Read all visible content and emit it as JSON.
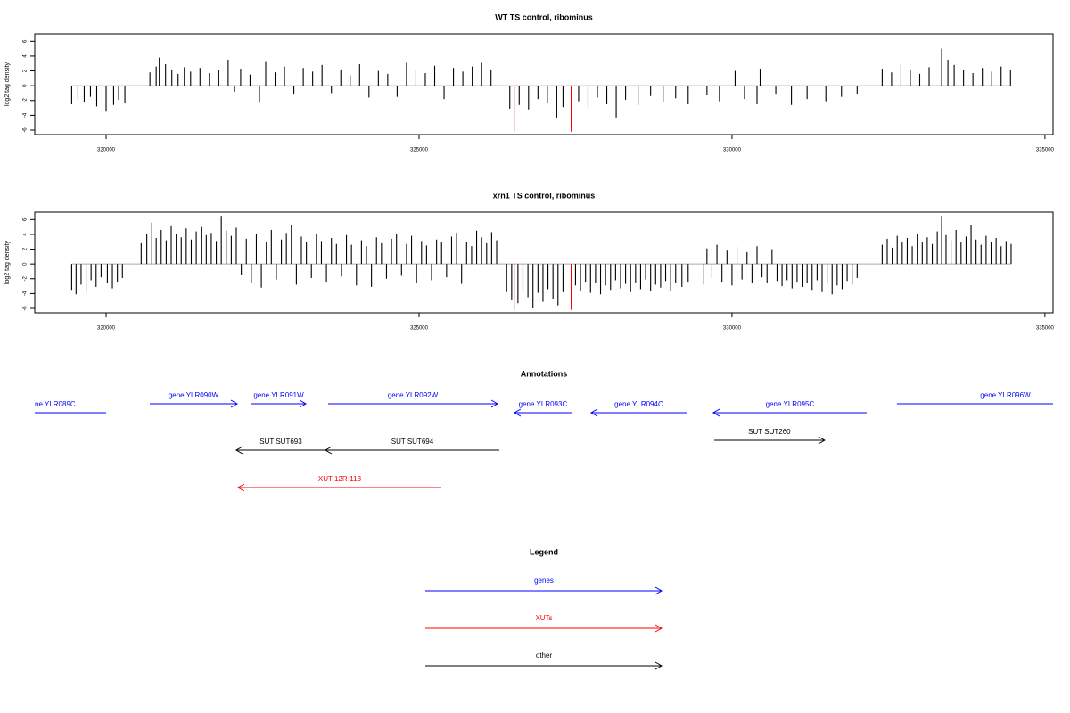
{
  "chart_data": [
    {
      "type": "bar",
      "title": "WT TS control, ribominus",
      "ylabel": "log2 tag density",
      "xlim": [
        318860,
        335130
      ],
      "ylim": [
        -6.6,
        7
      ],
      "xticks": [
        320000,
        325000,
        330000,
        335000
      ],
      "yticks": [
        -6,
        -4,
        -2,
        0,
        2,
        4,
        6
      ],
      "series": [
        {
          "color": "#000000",
          "x": [
            319450,
            319550,
            319650,
            319750,
            319850,
            320000,
            320120,
            320200,
            320300,
            320700,
            320800,
            320850,
            320950,
            321050,
            321150,
            321250,
            321350,
            321500,
            321650,
            321800,
            321950,
            322050,
            322150,
            322300,
            322450,
            322550,
            322700,
            322850,
            323000,
            323150,
            323300,
            323450,
            323600,
            323750,
            323900,
            324050,
            324200,
            324350,
            324500,
            324650,
            324800,
            324950,
            325100,
            325250,
            325400,
            325550,
            325700,
            325850,
            326000,
            326150,
            326450,
            326600,
            326750,
            326900,
            327050,
            327200,
            327300,
            327550,
            327700,
            327850,
            328000,
            328150,
            328300,
            328500,
            328700,
            328900,
            329100,
            329300,
            329600,
            329800,
            330050,
            330200,
            330400,
            330450,
            330700,
            330950,
            331200,
            331500,
            331750,
            332000,
            332400,
            332550,
            332700,
            332850,
            333000,
            333150,
            333350,
            333450,
            333550,
            333700,
            333850,
            334000,
            334150,
            334300,
            334450
          ],
          "values": [
            -2.5,
            -1.8,
            -2.2,
            -1.5,
            -2.8,
            -3.5,
            -2.6,
            -1.9,
            -2.4,
            1.8,
            2.6,
            3.8,
            2.9,
            2.2,
            1.6,
            2.5,
            1.9,
            2.4,
            1.7,
            2.1,
            3.5,
            -0.8,
            2.3,
            1.5,
            -2.3,
            3.2,
            1.8,
            2.6,
            -1.2,
            2.4,
            1.9,
            2.8,
            -1.0,
            2.2,
            1.4,
            2.9,
            -1.6,
            2.0,
            1.6,
            -1.5,
            3.1,
            2.1,
            1.7,
            2.7,
            -1.8,
            2.4,
            1.9,
            2.6,
            3.1,
            2.2,
            -3.1,
            -2.6,
            -3.2,
            -1.8,
            -2.4,
            -4.3,
            -2.9,
            -2.1,
            -2.9,
            -1.6,
            -2.5,
            -4.3,
            -1.9,
            -2.6,
            -1.4,
            -2.2,
            -1.7,
            -2.5,
            -1.3,
            -2.1,
            2.0,
            -1.8,
            -2.5,
            2.3,
            -1.2,
            -2.6,
            -1.8,
            -2.1,
            -1.5,
            -1.2,
            2.3,
            1.8,
            2.9,
            2.2,
            1.6,
            2.5,
            5.0,
            3.5,
            2.8,
            2.1,
            1.7,
            2.4,
            1.9,
            2.6,
            2.1
          ]
        },
        {
          "color": "#ff0000",
          "x": [
            326520,
            327430
          ],
          "values": [
            -6.2,
            -6.2
          ]
        }
      ]
    },
    {
      "type": "bar",
      "title": "xrn1 TS control, ribominus",
      "ylabel": "log2 tag density",
      "xlim": [
        318860,
        335130
      ],
      "ylim": [
        -6.6,
        7
      ],
      "xticks": [
        320000,
        325000,
        330000,
        335000
      ],
      "yticks": [
        -6,
        -4,
        -2,
        0,
        2,
        4,
        6
      ],
      "series": [
        {
          "color": "#000000",
          "x": [
            319450,
            319520,
            319600,
            319680,
            319760,
            319840,
            319920,
            320020,
            320100,
            320180,
            320260,
            320560,
            320650,
            320730,
            320800,
            320880,
            320960,
            321040,
            321120,
            321200,
            321280,
            321360,
            321440,
            321520,
            321600,
            321680,
            321760,
            321840,
            321920,
            322000,
            322080,
            322160,
            322240,
            322320,
            322400,
            322480,
            322560,
            322640,
            322720,
            322800,
            322880,
            322960,
            323040,
            323120,
            323200,
            323280,
            323360,
            323440,
            323520,
            323600,
            323680,
            323760,
            323840,
            323920,
            324000,
            324080,
            324160,
            324240,
            324320,
            324400,
            324480,
            324560,
            324640,
            324720,
            324800,
            324880,
            324960,
            325040,
            325120,
            325200,
            325280,
            325360,
            325440,
            325520,
            325600,
            325680,
            325760,
            325840,
            325920,
            326000,
            326080,
            326160,
            326240,
            326400,
            326480,
            326580,
            326660,
            326740,
            326820,
            326900,
            326980,
            327060,
            327140,
            327220,
            327300,
            327500,
            327580,
            327660,
            327740,
            327820,
            327900,
            327980,
            328060,
            328140,
            328220,
            328300,
            328380,
            328460,
            328540,
            328620,
            328700,
            328780,
            328860,
            328940,
            329020,
            329100,
            329200,
            329300,
            329550,
            329600,
            329680,
            329760,
            329840,
            329920,
            330000,
            330080,
            330160,
            330240,
            330320,
            330400,
            330480,
            330560,
            330640,
            330720,
            330800,
            330880,
            330960,
            331040,
            331120,
            331200,
            331280,
            331360,
            331440,
            331520,
            331600,
            331680,
            331760,
            331840,
            331920,
            332000,
            332400,
            332480,
            332560,
            332640,
            332720,
            332800,
            332880,
            332960,
            333040,
            333120,
            333200,
            333280,
            333350,
            333420,
            333500,
            333580,
            333660,
            333740,
            333820,
            333900,
            333980,
            334060,
            334140,
            334220,
            334300,
            334380,
            334460
          ],
          "values": [
            -3.5,
            -4.1,
            -2.8,
            -3.9,
            -2.2,
            -3.1,
            -1.8,
            -2.6,
            -3.3,
            -2.4,
            -1.9,
            2.8,
            4.1,
            5.6,
            3.5,
            4.6,
            3.2,
            5.1,
            4.0,
            3.6,
            4.8,
            3.3,
            4.4,
            5.0,
            3.9,
            4.2,
            3.1,
            6.5,
            4.5,
            3.8,
            4.9,
            -1.5,
            3.4,
            -2.6,
            4.1,
            -3.2,
            3.0,
            4.6,
            -2.1,
            3.3,
            4.2,
            5.3,
            -2.8,
            3.7,
            2.9,
            -1.9,
            4.0,
            3.1,
            -2.4,
            3.5,
            2.7,
            -1.7,
            3.9,
            2.6,
            -2.9,
            3.2,
            2.4,
            -3.1,
            3.6,
            2.8,
            -2.0,
            3.4,
            4.1,
            -1.6,
            2.7,
            3.8,
            -2.5,
            3.1,
            2.5,
            -2.2,
            3.3,
            2.9,
            -1.8,
            3.7,
            4.2,
            -2.7,
            3.0,
            2.4,
            4.5,
            3.6,
            2.8,
            4.3,
            3.2,
            -3.8,
            -4.9,
            -5.3,
            -3.6,
            -4.5,
            -6.0,
            -3.9,
            -5.1,
            -3.4,
            -4.7,
            -5.6,
            -3.8,
            -2.9,
            -3.6,
            -2.4,
            -3.9,
            -2.6,
            -4.1,
            -2.9,
            -3.5,
            -2.2,
            -3.3,
            -2.7,
            -3.8,
            -2.5,
            -3.4,
            -2.1,
            -3.6,
            -2.8,
            -3.2,
            -2.3,
            -3.7,
            -2.6,
            -3.1,
            -2.4,
            -2.8,
            2.1,
            -1.9,
            2.6,
            -2.4,
            1.8,
            -2.9,
            2.3,
            -2.1,
            1.6,
            -2.6,
            2.4,
            -1.8,
            -2.5,
            2.0,
            -2.3,
            -3.0,
            -2.2,
            -3.3,
            -2.4,
            -3.1,
            -2.6,
            -3.5,
            -2.2,
            -3.8,
            -2.7,
            -4.1,
            -2.9,
            -3.4,
            -2.3,
            -2.8,
            -1.9,
            2.6,
            3.4,
            2.2,
            3.8,
            2.9,
            3.5,
            2.4,
            4.1,
            3.0,
            3.6,
            2.7,
            4.4,
            6.5,
            3.9,
            3.2,
            4.6,
            2.9,
            3.7,
            5.2,
            3.3,
            2.6,
            3.8,
            2.9,
            3.5,
            2.4,
            3.1,
            2.7
          ]
        },
        {
          "color": "#ff0000",
          "x": [
            326520,
            327430
          ],
          "values": [
            -6.2,
            -6.2
          ]
        }
      ]
    }
  ],
  "annotations": {
    "title": "Annotations",
    "features": [
      {
        "label": "ne YLR089C",
        "start": 318000,
        "end": 320000,
        "strand": "-",
        "color": "#0000ff"
      },
      {
        "label": "gene YLR090W",
        "start": 320698,
        "end": 322094,
        "strand": "+",
        "color": "#0000ff"
      },
      {
        "label": "gene YLR091W",
        "start": 322322,
        "end": 323191,
        "strand": "+",
        "color": "#0000ff"
      },
      {
        "label": "gene YLR092W",
        "start": 323547,
        "end": 326254,
        "strand": "+",
        "color": "#0000ff"
      },
      {
        "label": "gene YLR093C",
        "start": 326524,
        "end": 327436,
        "strand": "-",
        "color": "#0000ff"
      },
      {
        "label": "gene YLR094C",
        "start": 327749,
        "end": 329274,
        "strand": "-",
        "color": "#0000ff"
      },
      {
        "label": "gene YLR095C",
        "start": 329701,
        "end": 332151,
        "strand": "-",
        "color": "#0000ff"
      },
      {
        "label": "gene YLR096W",
        "start": 332635,
        "end": 336100,
        "strand": "+",
        "color": "#0000ff"
      },
      {
        "label": "SUT SUT693",
        "start": 322080,
        "end": 323504,
        "strand": "-",
        "color": "#000000"
      },
      {
        "label": "SUT SUT694",
        "start": 323504,
        "end": 326282,
        "strand": "-",
        "color": "#000000"
      },
      {
        "label": "SUT SUT260",
        "start": 329715,
        "end": 331481,
        "strand": "+",
        "color": "#000000"
      },
      {
        "label": "XUT 12R-113",
        "start": 322108,
        "end": 325356,
        "strand": "-",
        "color": "#ff0000"
      }
    ]
  },
  "legend": {
    "title": "Legend",
    "items": [
      {
        "name": "genes",
        "color": "#0000ff"
      },
      {
        "name": "XUTs",
        "color": "#ff0000"
      },
      {
        "name": "other",
        "color": "#000000"
      }
    ]
  }
}
